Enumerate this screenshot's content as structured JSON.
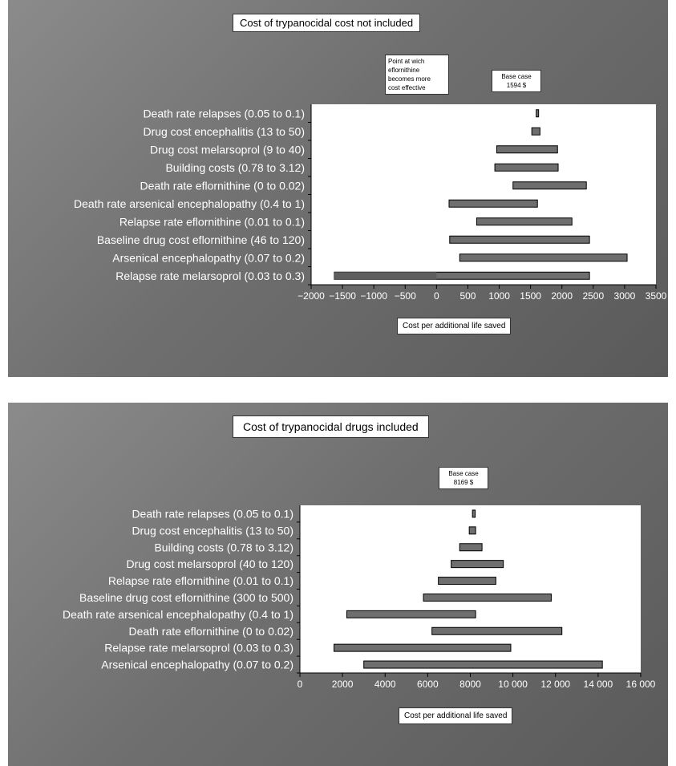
{
  "chart_data": [
    {
      "type": "bar",
      "subtype": "tornado",
      "title": "Cost of trypanocidal cost not included",
      "xlabel": "Cost per additional life saved",
      "xlim": [
        -2000,
        3500
      ],
      "xticks": [
        -2000,
        -1500,
        -1000,
        -500,
        0,
        500,
        1000,
        1500,
        2000,
        2500,
        3000,
        3500
      ],
      "xtick_labels": [
        "−2000",
        "−1500",
        "−1000",
        "−500",
        "0",
        "500",
        "1000",
        "1500",
        "2000",
        "2500",
        "3000",
        "3500"
      ],
      "base_case_value": 1594,
      "base_case_label": [
        "Base case",
        "1594 $"
      ],
      "annotation": [
        "Point at wich",
        "eflornithine",
        "becomes more",
        "cost effective"
      ],
      "categories": [
        "Death rate relapses (0.05 to 0.1)",
        "Drug cost encephalitis (13 to 50)",
        "Drug cost melarsoprol (9 to 40)",
        "Building costs (0.78 to 3.12)",
        "Death rate eflornithine (0 to 0.02)",
        "Death rate arsenical encephalopathy (0.4 to 1)",
        "Relapse rate eflornithine (0.01 to 0.1)",
        "Baseline drug cost eflornithine (46 to 120)",
        "Arsenical encephalopathy (0.07 to 0.2)",
        "Relapse rate melarsoprol (0.03 to 0.3)"
      ],
      "ranges": [
        [
          1590,
          1610
        ],
        [
          1520,
          1650
        ],
        [
          960,
          1930
        ],
        [
          930,
          1940
        ],
        [
          1220,
          2390
        ],
        [
          200,
          1610
        ],
        [
          640,
          2160
        ],
        [
          210,
          2440
        ],
        [
          370,
          3040
        ],
        [
          -1630,
          2440
        ]
      ],
      "negative_segment": [
        -1630,
        0
      ],
      "colors": {
        "bar": "#6e6e6e",
        "negative_bar": "#5e5e5e",
        "plot_bg": "#ffffff"
      }
    },
    {
      "type": "bar",
      "subtype": "tornado",
      "title": "Cost of trypanocidal drugs included",
      "xlabel": "Cost per additional life saved",
      "xlim": [
        0,
        16000
      ],
      "xticks": [
        0,
        2000,
        4000,
        6000,
        8000,
        10000,
        12000,
        14000,
        16000
      ],
      "xtick_labels": [
        "0",
        "2000",
        "4000",
        "6000",
        "8000",
        "10 000",
        "12 000",
        "14 000",
        "16 000"
      ],
      "base_case_value": 8169,
      "base_case_label": [
        "Base case",
        "8169 $"
      ],
      "categories": [
        "Death rate relapses (0.05 to 0.1)",
        "Drug cost encephalitis (13 to 50)",
        "Building costs (0.78 to 3.12)",
        "Drug cost melarsoprol (40 to 120)",
        "Relapse rate eflornithine (0.01 to 0.1)",
        "Baseline drug cost eflornithine (300 to 500)",
        "Death rate arsenical encephalopathy (0.4 to 1)",
        "Death rate eflornithine (0 to 0.02)",
        "Relapse rate melarsoprol (0.03 to 0.3)",
        "Arsenical encephalopathy (0.07 to 0.2)"
      ],
      "ranges": [
        [
          8100,
          8230
        ],
        [
          7950,
          8250
        ],
        [
          7500,
          8550
        ],
        [
          7100,
          9550
        ],
        [
          6500,
          9200
        ],
        [
          5800,
          11800
        ],
        [
          2200,
          8250
        ],
        [
          6200,
          12300
        ],
        [
          1600,
          9900
        ],
        [
          3000,
          14200
        ]
      ],
      "colors": {
        "bar": "#6e6e6e",
        "plot_bg": "#ffffff"
      }
    }
  ]
}
